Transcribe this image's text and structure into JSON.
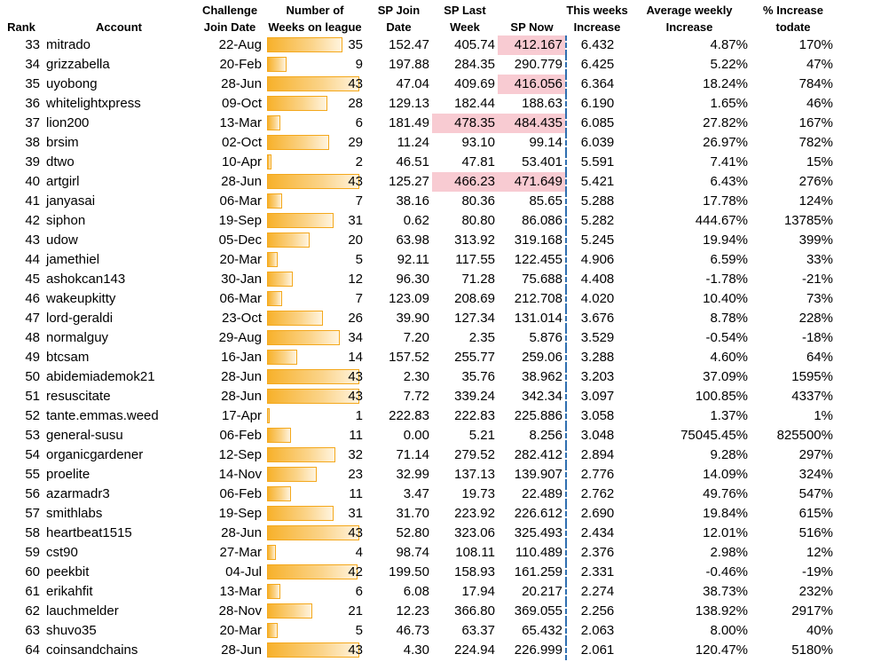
{
  "headers": {
    "rank": [
      "",
      "Rank"
    ],
    "account": [
      "",
      "Account"
    ],
    "join_date": [
      "Challenge",
      "Join Date"
    ],
    "weeks": [
      "Number of",
      "Weeks on league"
    ],
    "sp_join": [
      "SP Join",
      "Date"
    ],
    "sp_last": [
      "SP Last",
      "Week"
    ],
    "sp_now": [
      "",
      "SP Now"
    ],
    "this_week": [
      "This weeks",
      "Increase"
    ],
    "avg_weekly": [
      "Average weekly",
      "Increase"
    ],
    "pct_increase": [
      "% Increase",
      "todate"
    ]
  },
  "bar_color": "#f7b12b",
  "highlight_color": "#f8cbd2",
  "rows": [
    {
      "rank": "33",
      "account": "mitrado",
      "join": "22-Aug",
      "weeks": "35",
      "sp_join": "152.47",
      "sp_last": "405.74",
      "sp_now": "412.167",
      "this_week": "6.432",
      "avg": "4.87%",
      "pct": "170%",
      "hl_last": false,
      "hl_now": true
    },
    {
      "rank": "34",
      "account": "grizzabella",
      "join": "20-Feb",
      "weeks": "9",
      "sp_join": "197.88",
      "sp_last": "284.35",
      "sp_now": "290.779",
      "this_week": "6.425",
      "avg": "5.22%",
      "pct": "47%",
      "hl_last": false,
      "hl_now": false
    },
    {
      "rank": "35",
      "account": "uyobong",
      "join": "28-Jun",
      "weeks": "43",
      "sp_join": "47.04",
      "sp_last": "409.69",
      "sp_now": "416.056",
      "this_week": "6.364",
      "avg": "18.24%",
      "pct": "784%",
      "hl_last": false,
      "hl_now": true
    },
    {
      "rank": "36",
      "account": "whitelightxpress",
      "join": "09-Oct",
      "weeks": "28",
      "sp_join": "129.13",
      "sp_last": "182.44",
      "sp_now": "188.63",
      "this_week": "6.190",
      "avg": "1.65%",
      "pct": "46%",
      "hl_last": false,
      "hl_now": false
    },
    {
      "rank": "37",
      "account": "lion200",
      "join": "13-Mar",
      "weeks": "6",
      "sp_join": "181.49",
      "sp_last": "478.35",
      "sp_now": "484.435",
      "this_week": "6.085",
      "avg": "27.82%",
      "pct": "167%",
      "hl_last": true,
      "hl_now": true
    },
    {
      "rank": "38",
      "account": "brsim",
      "join": "02-Oct",
      "weeks": "29",
      "sp_join": "11.24",
      "sp_last": "93.10",
      "sp_now": "99.14",
      "this_week": "6.039",
      "avg": "26.97%",
      "pct": "782%",
      "hl_last": false,
      "hl_now": false
    },
    {
      "rank": "39",
      "account": "dtwo",
      "join": "10-Apr",
      "weeks": "2",
      "sp_join": "46.51",
      "sp_last": "47.81",
      "sp_now": "53.401",
      "this_week": "5.591",
      "avg": "7.41%",
      "pct": "15%",
      "hl_last": false,
      "hl_now": false
    },
    {
      "rank": "40",
      "account": "artgirl",
      "join": "28-Jun",
      "weeks": "43",
      "sp_join": "125.27",
      "sp_last": "466.23",
      "sp_now": "471.649",
      "this_week": "5.421",
      "avg": "6.43%",
      "pct": "276%",
      "hl_last": true,
      "hl_now": true
    },
    {
      "rank": "41",
      "account": "janyasai",
      "join": "06-Mar",
      "weeks": "7",
      "sp_join": "38.16",
      "sp_last": "80.36",
      "sp_now": "85.65",
      "this_week": "5.288",
      "avg": "17.78%",
      "pct": "124%",
      "hl_last": false,
      "hl_now": false
    },
    {
      "rank": "42",
      "account": "siphon",
      "join": "19-Sep",
      "weeks": "31",
      "sp_join": "0.62",
      "sp_last": "80.80",
      "sp_now": "86.086",
      "this_week": "5.282",
      "avg": "444.67%",
      "pct": "13785%",
      "hl_last": false,
      "hl_now": false
    },
    {
      "rank": "43",
      "account": "udow",
      "join": "05-Dec",
      "weeks": "20",
      "sp_join": "63.98",
      "sp_last": "313.92",
      "sp_now": "319.168",
      "this_week": "5.245",
      "avg": "19.94%",
      "pct": "399%",
      "hl_last": false,
      "hl_now": false
    },
    {
      "rank": "44",
      "account": "jamethiel",
      "join": "20-Mar",
      "weeks": "5",
      "sp_join": "92.11",
      "sp_last": "117.55",
      "sp_now": "122.455",
      "this_week": "4.906",
      "avg": "6.59%",
      "pct": "33%",
      "hl_last": false,
      "hl_now": false
    },
    {
      "rank": "45",
      "account": "ashokcan143",
      "join": "30-Jan",
      "weeks": "12",
      "sp_join": "96.30",
      "sp_last": "71.28",
      "sp_now": "75.688",
      "this_week": "4.408",
      "avg": "-1.78%",
      "pct": "-21%",
      "hl_last": false,
      "hl_now": false
    },
    {
      "rank": "46",
      "account": "wakeupkitty",
      "join": "06-Mar",
      "weeks": "7",
      "sp_join": "123.09",
      "sp_last": "208.69",
      "sp_now": "212.708",
      "this_week": "4.020",
      "avg": "10.40%",
      "pct": "73%",
      "hl_last": false,
      "hl_now": false
    },
    {
      "rank": "47",
      "account": "lord-geraldi",
      "join": "23-Oct",
      "weeks": "26",
      "sp_join": "39.90",
      "sp_last": "127.34",
      "sp_now": "131.014",
      "this_week": "3.676",
      "avg": "8.78%",
      "pct": "228%",
      "hl_last": false,
      "hl_now": false
    },
    {
      "rank": "48",
      "account": "normalguy",
      "join": "29-Aug",
      "weeks": "34",
      "sp_join": "7.20",
      "sp_last": "2.35",
      "sp_now": "5.876",
      "this_week": "3.529",
      "avg": "-0.54%",
      "pct": "-18%",
      "hl_last": false,
      "hl_now": false
    },
    {
      "rank": "49",
      "account": "btcsam",
      "join": "16-Jan",
      "weeks": "14",
      "sp_join": "157.52",
      "sp_last": "255.77",
      "sp_now": "259.06",
      "this_week": "3.288",
      "avg": "4.60%",
      "pct": "64%",
      "hl_last": false,
      "hl_now": false
    },
    {
      "rank": "50",
      "account": "abidemiademok21",
      "join": "28-Jun",
      "weeks": "43",
      "sp_join": "2.30",
      "sp_last": "35.76",
      "sp_now": "38.962",
      "this_week": "3.203",
      "avg": "37.09%",
      "pct": "1595%",
      "hl_last": false,
      "hl_now": false
    },
    {
      "rank": "51",
      "account": "resuscitate",
      "join": "28-Jun",
      "weeks": "43",
      "sp_join": "7.72",
      "sp_last": "339.24",
      "sp_now": "342.34",
      "this_week": "3.097",
      "avg": "100.85%",
      "pct": "4337%",
      "hl_last": false,
      "hl_now": false
    },
    {
      "rank": "52",
      "account": "tante.emmas.weed",
      "join": "17-Apr",
      "weeks": "1",
      "sp_join": "222.83",
      "sp_last": "222.83",
      "sp_now": "225.886",
      "this_week": "3.058",
      "avg": "1.37%",
      "pct": "1%",
      "hl_last": false,
      "hl_now": false
    },
    {
      "rank": "53",
      "account": "general-susu",
      "join": "06-Feb",
      "weeks": "11",
      "sp_join": "0.00",
      "sp_last": "5.21",
      "sp_now": "8.256",
      "this_week": "3.048",
      "avg": "75045.45%",
      "pct": "825500%",
      "hl_last": false,
      "hl_now": false
    },
    {
      "rank": "54",
      "account": "organicgardener",
      "join": "12-Sep",
      "weeks": "32",
      "sp_join": "71.14",
      "sp_last": "279.52",
      "sp_now": "282.412",
      "this_week": "2.894",
      "avg": "9.28%",
      "pct": "297%",
      "hl_last": false,
      "hl_now": false
    },
    {
      "rank": "55",
      "account": "proelite",
      "join": "14-Nov",
      "weeks": "23",
      "sp_join": "32.99",
      "sp_last": "137.13",
      "sp_now": "139.907",
      "this_week": "2.776",
      "avg": "14.09%",
      "pct": "324%",
      "hl_last": false,
      "hl_now": false
    },
    {
      "rank": "56",
      "account": "azarmadr3",
      "join": "06-Feb",
      "weeks": "11",
      "sp_join": "3.47",
      "sp_last": "19.73",
      "sp_now": "22.489",
      "this_week": "2.762",
      "avg": "49.76%",
      "pct": "547%",
      "hl_last": false,
      "hl_now": false
    },
    {
      "rank": "57",
      "account": "smithlabs",
      "join": "19-Sep",
      "weeks": "31",
      "sp_join": "31.70",
      "sp_last": "223.92",
      "sp_now": "226.612",
      "this_week": "2.690",
      "avg": "19.84%",
      "pct": "615%",
      "hl_last": false,
      "hl_now": false
    },
    {
      "rank": "58",
      "account": "heartbeat1515",
      "join": "28-Jun",
      "weeks": "43",
      "sp_join": "52.80",
      "sp_last": "323.06",
      "sp_now": "325.493",
      "this_week": "2.434",
      "avg": "12.01%",
      "pct": "516%",
      "hl_last": false,
      "hl_now": false
    },
    {
      "rank": "59",
      "account": "cst90",
      "join": "27-Mar",
      "weeks": "4",
      "sp_join": "98.74",
      "sp_last": "108.11",
      "sp_now": "110.489",
      "this_week": "2.376",
      "avg": "2.98%",
      "pct": "12%",
      "hl_last": false,
      "hl_now": false
    },
    {
      "rank": "60",
      "account": "peekbit",
      "join": "04-Jul",
      "weeks": "42",
      "sp_join": "199.50",
      "sp_last": "158.93",
      "sp_now": "161.259",
      "this_week": "2.331",
      "avg": "-0.46%",
      "pct": "-19%",
      "hl_last": false,
      "hl_now": false
    },
    {
      "rank": "61",
      "account": "erikahfit",
      "join": "13-Mar",
      "weeks": "6",
      "sp_join": "6.08",
      "sp_last": "17.94",
      "sp_now": "20.217",
      "this_week": "2.274",
      "avg": "38.73%",
      "pct": "232%",
      "hl_last": false,
      "hl_now": false
    },
    {
      "rank": "62",
      "account": "lauchmelder",
      "join": "28-Nov",
      "weeks": "21",
      "sp_join": "12.23",
      "sp_last": "366.80",
      "sp_now": "369.055",
      "this_week": "2.256",
      "avg": "138.92%",
      "pct": "2917%",
      "hl_last": false,
      "hl_now": false
    },
    {
      "rank": "63",
      "account": "shuvo35",
      "join": "20-Mar",
      "weeks": "5",
      "sp_join": "46.73",
      "sp_last": "63.37",
      "sp_now": "65.432",
      "this_week": "2.063",
      "avg": "8.00%",
      "pct": "40%",
      "hl_last": false,
      "hl_now": false
    },
    {
      "rank": "64",
      "account": "coinsandchains",
      "join": "28-Jun",
      "weeks": "43",
      "sp_join": "4.30",
      "sp_last": "224.94",
      "sp_now": "226.999",
      "this_week": "2.061",
      "avg": "120.47%",
      "pct": "5180%",
      "hl_last": false,
      "hl_now": false
    }
  ]
}
